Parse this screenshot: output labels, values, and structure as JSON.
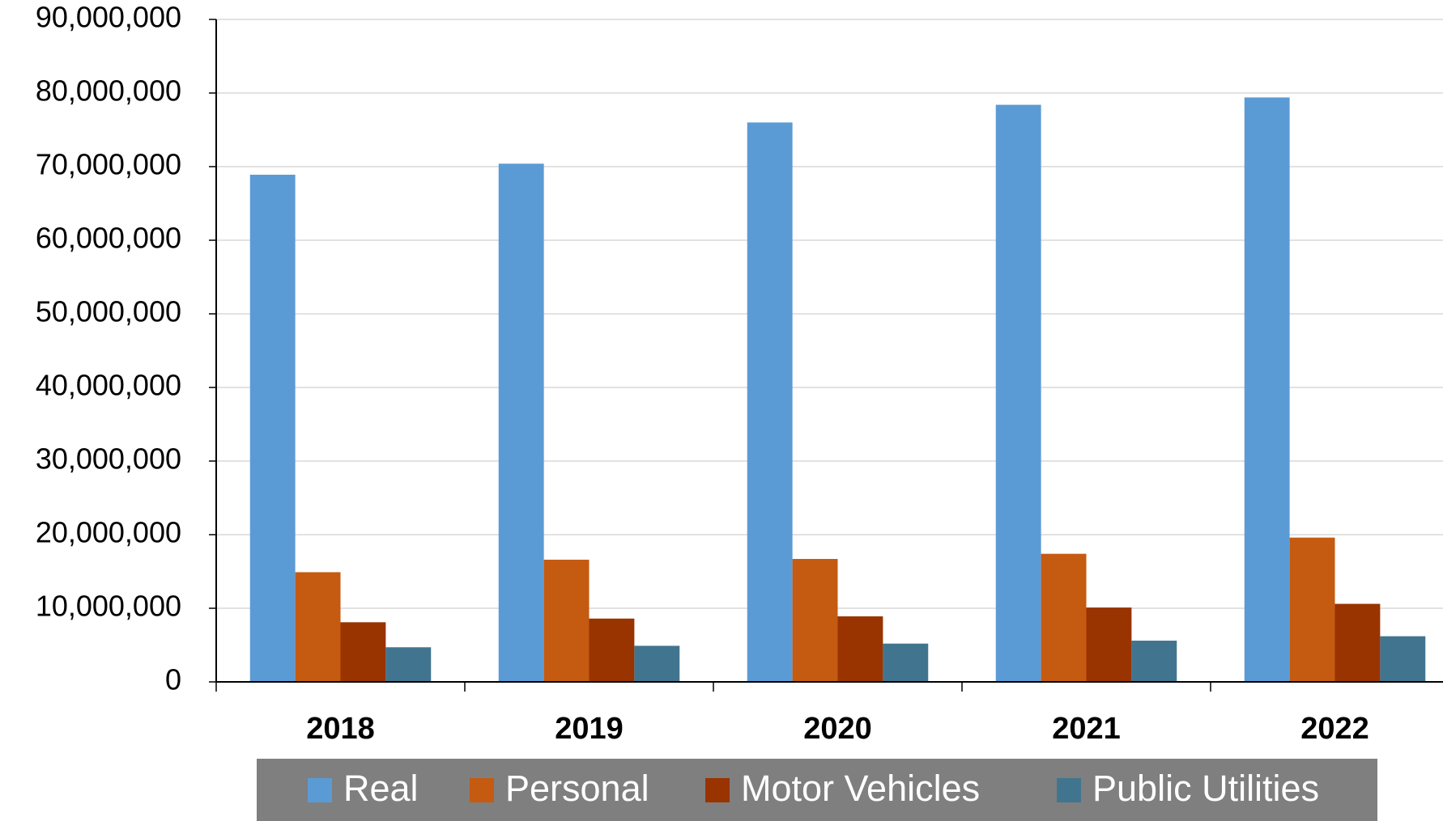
{
  "chart_data": {
    "type": "bar",
    "categories": [
      "2018",
      "2019",
      "2020",
      "2021",
      "2022"
    ],
    "series": [
      {
        "name": "Real",
        "color": "#5b9bd5",
        "values": [
          68900000,
          70400000,
          76000000,
          78400000,
          79400000
        ]
      },
      {
        "name": "Personal",
        "color": "#c55a11",
        "values": [
          14900000,
          16600000,
          16700000,
          17400000,
          19600000
        ]
      },
      {
        "name": "Motor Vehicles",
        "color": "#993300",
        "values": [
          8100000,
          8600000,
          8900000,
          10100000,
          10600000
        ]
      },
      {
        "name": "Public Utilities",
        "color": "#41758f",
        "values": [
          4700000,
          4900000,
          5200000,
          5600000,
          6200000
        ]
      }
    ],
    "ylim": [
      0,
      90000000
    ],
    "yticks": [
      0,
      {
        "value": 10000000,
        "label": "10,000,000"
      },
      {
        "value": 20000000,
        "label": "20,000,000"
      },
      {
        "value": 30000000,
        "label": "30,000,000"
      },
      {
        "value": 40000000,
        "label": "40,000,000"
      },
      {
        "value": 50000000,
        "label": "50,000,000"
      },
      {
        "value": 60000000,
        "label": "60,000,000"
      },
      {
        "value": 70000000,
        "label": "70,000,000"
      },
      {
        "value": 80000000,
        "label": "80,000,000"
      },
      {
        "value": 90000000,
        "label": "90,000,000"
      }
    ],
    "grid": true,
    "legend": "bottom"
  }
}
